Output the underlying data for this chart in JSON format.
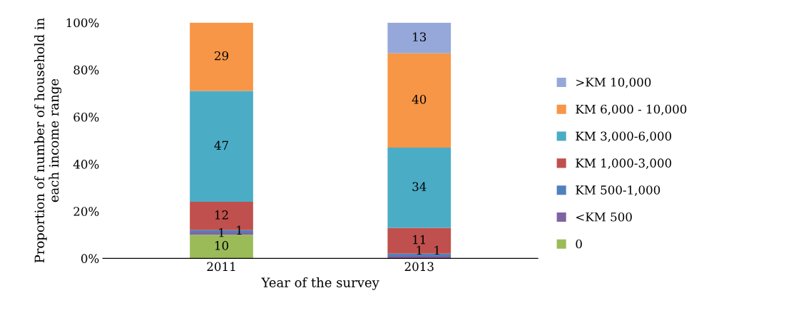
{
  "chart_data": {
    "type": "bar",
    "stacked": true,
    "xlabel": "Year of the survey",
    "ylabel": "Proportion of number of household in each income range",
    "categories": [
      "2011",
      "2013"
    ],
    "ylim": [
      0,
      100
    ],
    "yticks": [
      {
        "value": 0,
        "label": "0%"
      },
      {
        "value": 20,
        "label": "20%"
      },
      {
        "value": 40,
        "label": "40%"
      },
      {
        "value": 60,
        "label": "60%"
      },
      {
        "value": 80,
        "label": "80%"
      },
      {
        "value": 100,
        "label": "100%"
      }
    ],
    "grid": false,
    "legend": "right",
    "series": [
      {
        "name": "0",
        "color": "#9bbb59",
        "values": [
          10,
          0
        ],
        "value_labels": [
          "10",
          null
        ]
      },
      {
        "name": "<KM 500",
        "color": "#8064a2",
        "values": [
          1,
          1
        ],
        "value_labels": [
          "1",
          "1"
        ]
      },
      {
        "name": "KM 500-1,000",
        "color": "#4f81bd",
        "values": [
          1,
          1
        ],
        "value_labels": [
          "1",
          "1"
        ]
      },
      {
        "name": "KM 1,000-3,000",
        "color": "#c0504d",
        "values": [
          12,
          11
        ],
        "value_labels": [
          "12",
          "11"
        ]
      },
      {
        "name": "KM 3,000-6,000",
        "color": "#4bacc6",
        "values": [
          47,
          34
        ],
        "value_labels": [
          "47",
          "34"
        ]
      },
      {
        "name": "KM 6,000 - 10,000",
        "color": "#f79646",
        "values": [
          29,
          40
        ],
        "value_labels": [
          "29",
          "40"
        ]
      },
      {
        "name": ">KM 10,000",
        "color": "#95a8d9",
        "values": [
          0,
          13
        ],
        "value_labels": [
          null,
          "13"
        ]
      }
    ]
  }
}
